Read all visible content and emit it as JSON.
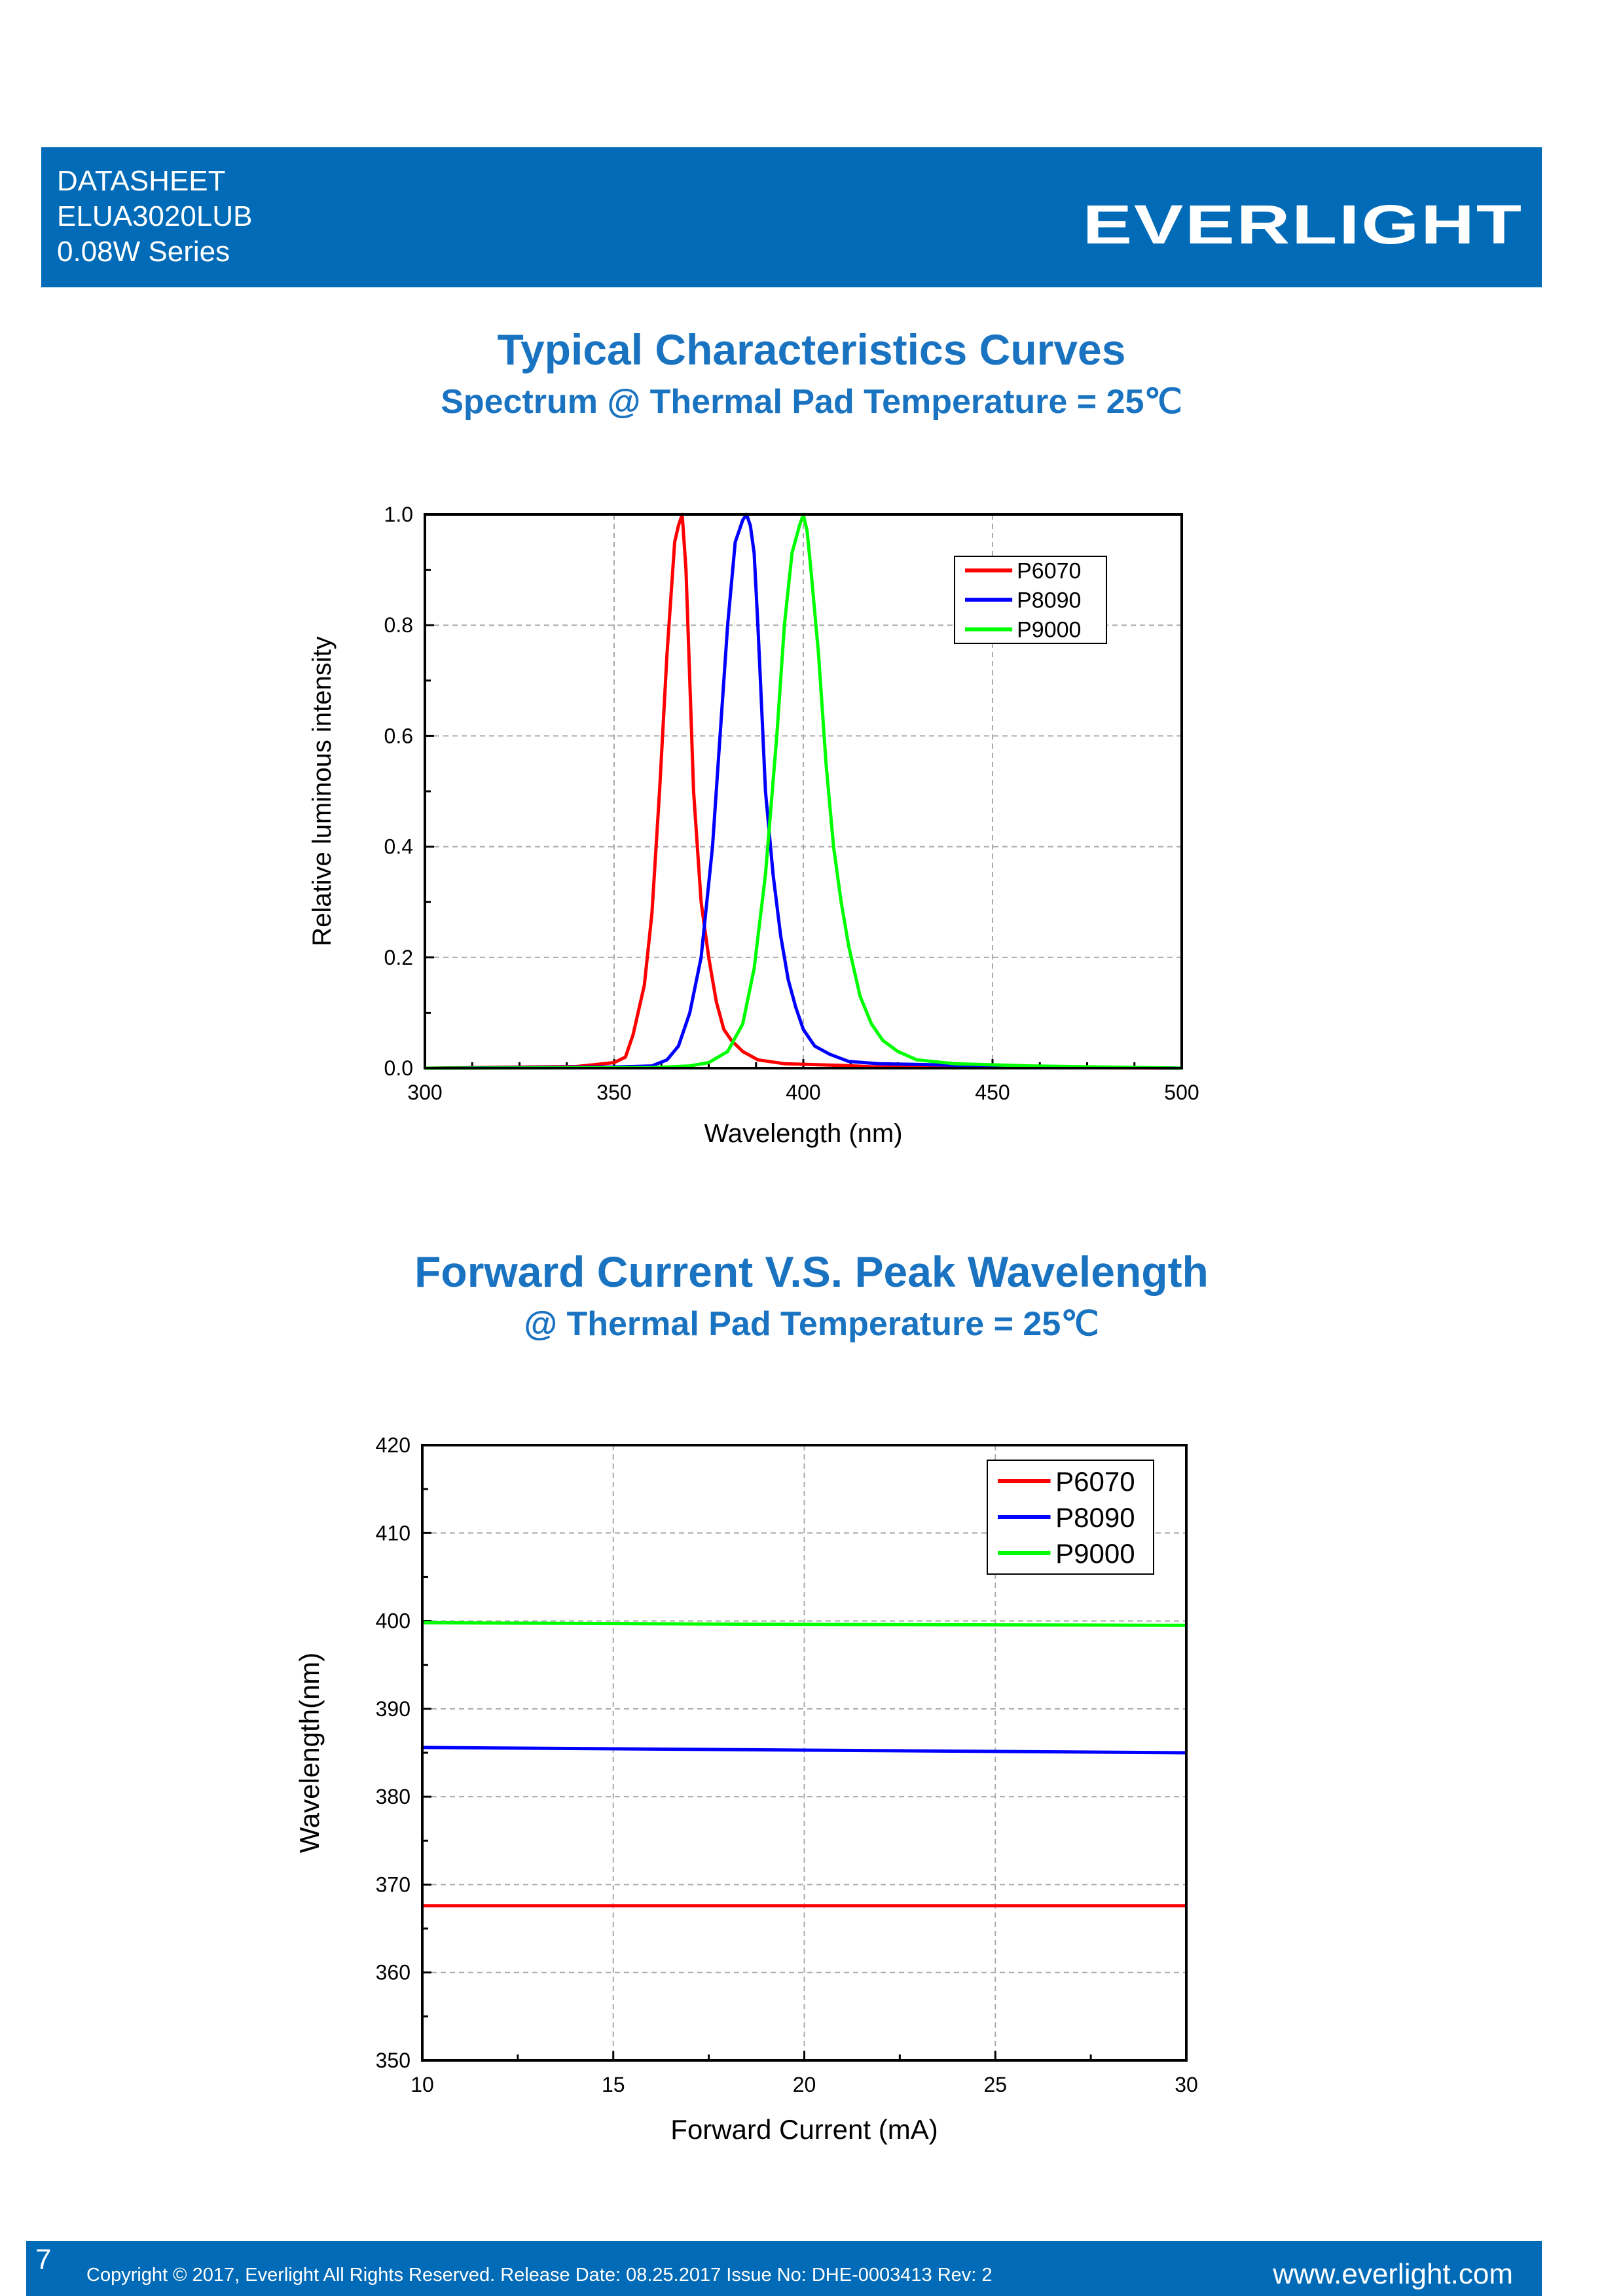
{
  "header": {
    "line1": "DATASHEET",
    "line2": "ELUA3020LUB",
    "line3": "0.08W Series",
    "logo": "EVERLIGHT",
    "color": "#016bb7"
  },
  "section1": {
    "title": "Typical Characteristics Curves",
    "subtitle": "Spectrum @ Thermal Pad Temperature = 25℃"
  },
  "section2": {
    "title": "Forward Current V.S. Peak Wavelength",
    "subtitle": "@ Thermal Pad Temperature = 25℃"
  },
  "footer": {
    "page_number": "7",
    "copyright": "Copyright © 2017, Everlight All Rights Reserved. Release Date: 08.25.2017 Issue No: DHE-0003413 Rev: 2",
    "website": "www.everlight.com"
  },
  "chart_data": [
    {
      "type": "line",
      "title": "Spectrum @ Thermal Pad Temperature = 25℃",
      "xlabel": "Wavelength (nm)",
      "ylabel": "Relative  luminous  intensity",
      "xlim": [
        300,
        500
      ],
      "ylim": [
        0,
        1.0
      ],
      "xticks": [
        "300",
        "350",
        "400",
        "450",
        "500"
      ],
      "yticks": [
        "0.0",
        "0.2",
        "0.4",
        "0.6",
        "0.8",
        "1.0"
      ],
      "grid": true,
      "legend": "top-right",
      "series": [
        {
          "name": "P6070",
          "color": "#ff0000",
          "x": [
            300,
            340,
            350,
            353,
            355,
            358,
            360,
            362,
            364,
            366,
            367,
            368,
            369,
            370,
            371,
            373,
            375,
            377,
            379,
            381,
            384,
            388,
            395,
            410,
            420,
            500
          ],
          "y": [
            0,
            0.003,
            0.01,
            0.02,
            0.06,
            0.15,
            0.28,
            0.5,
            0.75,
            0.95,
            0.98,
            1.0,
            0.9,
            0.7,
            0.5,
            0.3,
            0.2,
            0.12,
            0.07,
            0.05,
            0.03,
            0.015,
            0.008,
            0.005,
            0.002,
            0
          ]
        },
        {
          "name": "P8090",
          "color": "#0000ff",
          "x": [
            300,
            350,
            360,
            364,
            367,
            370,
            373,
            376,
            378,
            380,
            382,
            384,
            385,
            386,
            387,
            388,
            389,
            390,
            392,
            394,
            396,
            398,
            400,
            403,
            407,
            412,
            420,
            450,
            500
          ],
          "y": [
            0,
            0.002,
            0.004,
            0.015,
            0.04,
            0.1,
            0.2,
            0.4,
            0.6,
            0.8,
            0.95,
            0.99,
            1.0,
            0.98,
            0.93,
            0.8,
            0.65,
            0.5,
            0.35,
            0.24,
            0.16,
            0.11,
            0.07,
            0.04,
            0.025,
            0.012,
            0.008,
            0.004,
            0
          ]
        },
        {
          "name": "P9000",
          "color": "#00ff00",
          "x": [
            300,
            360,
            370,
            375,
            380,
            384,
            387,
            390,
            393,
            395,
            397,
            399,
            400,
            401,
            402,
            404,
            406,
            408,
            410,
            412,
            415,
            418,
            421,
            425,
            430,
            440,
            460,
            500
          ],
          "y": [
            0,
            0.001,
            0.004,
            0.01,
            0.03,
            0.08,
            0.18,
            0.35,
            0.6,
            0.8,
            0.93,
            0.98,
            1.0,
            0.97,
            0.9,
            0.75,
            0.55,
            0.4,
            0.3,
            0.22,
            0.13,
            0.08,
            0.05,
            0.03,
            0.015,
            0.008,
            0.004,
            0
          ]
        }
      ]
    },
    {
      "type": "line",
      "title": "Forward Current V.S. Peak Wavelength",
      "xlabel": "Forward Current (mA)",
      "ylabel": "Wavelength(nm)",
      "xlim": [
        10,
        30
      ],
      "ylim": [
        350,
        420
      ],
      "xticks": [
        "10",
        "15",
        "20",
        "25",
        "30"
      ],
      "yticks": [
        "350",
        "360",
        "370",
        "380",
        "390",
        "400",
        "410",
        "420"
      ],
      "grid": true,
      "legend": "top-right",
      "series": [
        {
          "name": "P6070",
          "color": "#ff0000",
          "x": [
            10,
            20,
            30
          ],
          "y": [
            367.6,
            367.6,
            367.6
          ]
        },
        {
          "name": "P8090",
          "color": "#0000ff",
          "x": [
            10,
            20,
            30
          ],
          "y": [
            385.6,
            385.3,
            385.0
          ]
        },
        {
          "name": "P9000",
          "color": "#00ff00",
          "x": [
            10,
            20,
            30
          ],
          "y": [
            399.8,
            399.6,
            399.5
          ]
        }
      ]
    }
  ]
}
